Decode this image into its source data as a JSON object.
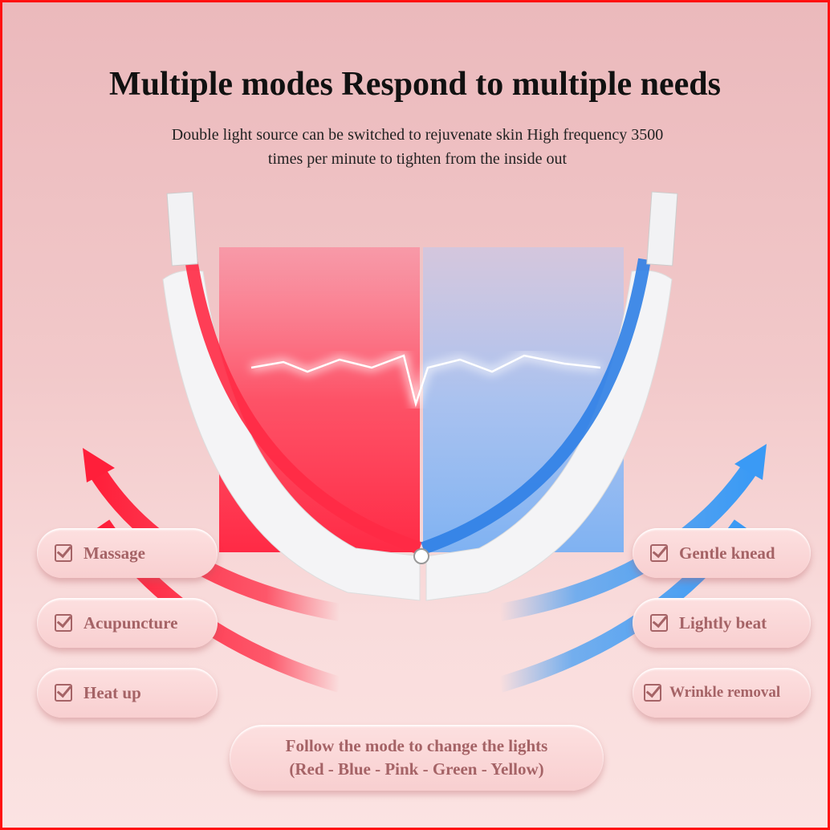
{
  "header": {
    "title": "Multiple modes Respond to multiple needs",
    "subtitle_line1": "Double light source can be switched to rejuvenate skin High frequency 3500",
    "subtitle_line2": "times per minute to tighten from the inside out"
  },
  "left_modes": [
    {
      "label": "Massage"
    },
    {
      "label": "Acupuncture"
    },
    {
      "label": "Heat up"
    }
  ],
  "right_modes": [
    {
      "label": "Gentle knead"
    },
    {
      "label": "Lightly beat"
    },
    {
      "label": "Wrinkle removal"
    }
  ],
  "footer": {
    "line1": "Follow the mode to change the lights",
    "line2": "(Red - Blue - Pink - Green - Yellow)"
  },
  "colors": {
    "border": "#ff1010",
    "red_light": "#ff2a45",
    "blue_light": "#3a8cf0",
    "pill_text": "#a56366"
  },
  "icons": {
    "mode": "checkbox-checked-icon"
  }
}
